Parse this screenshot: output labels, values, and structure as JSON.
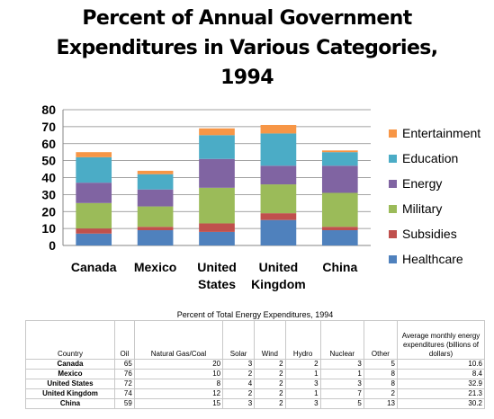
{
  "chart_data": {
    "type": "stacked-bar",
    "title": [
      "Percent of Annual Government",
      "Expenditures in Various Categories,",
      "1994"
    ],
    "categories": [
      "Canada",
      "Mexico",
      "United States",
      "United Kingdom",
      "China"
    ],
    "category_lines": [
      [
        "Canada"
      ],
      [
        "Mexico"
      ],
      [
        "United",
        "States"
      ],
      [
        "United",
        "Kingdom"
      ],
      [
        "China"
      ]
    ],
    "ylim": [
      0,
      80
    ],
    "yticks": [
      0,
      10,
      20,
      30,
      40,
      50,
      60,
      70,
      80
    ],
    "grid": true,
    "legend_position": "right",
    "series": [
      {
        "name": "Healthcare",
        "color": "#4f81bd",
        "values": [
          7,
          9,
          8,
          15,
          9
        ]
      },
      {
        "name": "Subsidies",
        "color": "#c0504d",
        "values": [
          3,
          2,
          5,
          4,
          2
        ]
      },
      {
        "name": "Military",
        "color": "#9bbb59",
        "values": [
          15,
          12,
          21,
          17,
          20
        ]
      },
      {
        "name": "Energy",
        "color": "#8064a2",
        "values": [
          12,
          10,
          17,
          11,
          16
        ]
      },
      {
        "name": "Education",
        "color": "#4bacc6",
        "values": [
          15,
          9,
          14,
          19,
          8
        ]
      },
      {
        "name": "Entertainment",
        "color": "#f79646",
        "values": [
          3,
          2,
          4,
          5,
          1
        ]
      }
    ]
  },
  "table": {
    "caption": "Percent of Total Energy Expenditures, 1994",
    "headers": [
      "Country",
      "Oil",
      "Natural Gas/Coal",
      "Solar",
      "Wind",
      "Hydro",
      "Nuclear",
      "Other",
      "Average monthly energy expenditures (billions of dollars)"
    ],
    "rows": [
      [
        "Canada",
        "65",
        "20",
        "3",
        "2",
        "2",
        "3",
        "5",
        "10.6"
      ],
      [
        "Mexico",
        "76",
        "10",
        "2",
        "2",
        "1",
        "1",
        "8",
        "8.4"
      ],
      [
        "United States",
        "72",
        "8",
        "4",
        "2",
        "3",
        "3",
        "8",
        "32.9"
      ],
      [
        "United Kingdom",
        "74",
        "12",
        "2",
        "2",
        "1",
        "7",
        "2",
        "21.3"
      ],
      [
        "China",
        "59",
        "15",
        "3",
        "2",
        "3",
        "5",
        "13",
        "30.2"
      ]
    ]
  }
}
